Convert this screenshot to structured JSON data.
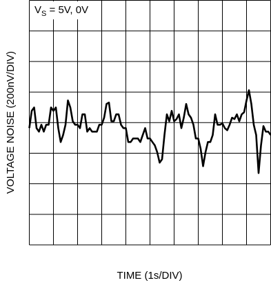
{
  "chart_data": {
    "type": "line",
    "xlabel": "TIME (1s/DIV)",
    "ylabel": "VOLTAGE NOISE (200nV/DIV)",
    "annotation": {
      "main": "V",
      "sub": "S",
      "rest": " = 5V, 0V"
    },
    "x": [
      0,
      0.1,
      0.2,
      0.3,
      0.4,
      0.5,
      0.6,
      0.7,
      0.8,
      0.9,
      1,
      1.1,
      1.2,
      1.3,
      1.4,
      1.5,
      1.6,
      1.7,
      1.8,
      1.9,
      2,
      2.1,
      2.2,
      2.3,
      2.4,
      2.5,
      2.6,
      2.7,
      2.8,
      2.9,
      3,
      3.1,
      3.2,
      3.3,
      3.4,
      3.5,
      3.6,
      3.7,
      3.8,
      3.9,
      4,
      4.1,
      4.2,
      4.3,
      4.4,
      4.5,
      4.6,
      4.7,
      4.8,
      4.9,
      5,
      5.1,
      5.2,
      5.3,
      5.4,
      5.5,
      5.6,
      5.7,
      5.8,
      5.9,
      6,
      6.1,
      6.2,
      6.3,
      6.4,
      6.5,
      6.6,
      6.7,
      6.8,
      6.9,
      7,
      7.1,
      7.2,
      7.3,
      7.4,
      7.5,
      7.6,
      7.7,
      7.8,
      7.9,
      8,
      8.1,
      8.2,
      8.3,
      8.4,
      8.5,
      8.6,
      8.7,
      8.8,
      8.9,
      9,
      9.1,
      9.2,
      9.3,
      9.4,
      9.5,
      9.6,
      9.7,
      9.8,
      9.9,
      10
    ],
    "series": [
      {
        "color": "#000000",
        "values": [
          -36,
          77,
          99,
          -36,
          -59,
          -14,
          -59,
          -14,
          -14,
          99,
          77,
          99,
          -36,
          -127,
          -81,
          -14,
          145,
          99,
          9,
          -14,
          -14,
          -36,
          54,
          54,
          -59,
          -36,
          -59,
          -59,
          -59,
          -14,
          -14,
          32,
          122,
          131,
          9,
          9,
          54,
          54,
          -14,
          -36,
          -36,
          -127,
          -127,
          -104,
          -104,
          -104,
          -127,
          -81,
          -36,
          -104,
          -104,
          -127,
          -149,
          -194,
          -262,
          -240,
          -81,
          54,
          9,
          77,
          9,
          23,
          54,
          -36,
          32,
          122,
          54,
          32,
          -14,
          -104,
          -104,
          -172,
          -285,
          -194,
          -127,
          -127,
          -81,
          54,
          -14,
          -14,
          -5,
          -36,
          -50,
          -14,
          32,
          23,
          54,
          9,
          54,
          68,
          145,
          212,
          122,
          -14,
          -81,
          -330,
          -149,
          -23,
          -59,
          -59,
          -81
        ]
      }
    ],
    "xlim": [
      0,
      10
    ],
    "ylim": [
      -800,
      800
    ],
    "xticks": [
      0,
      1,
      2,
      3,
      4,
      5,
      6,
      7,
      8,
      9,
      10
    ],
    "yticks": [
      -800,
      -600,
      -400,
      -200,
      0,
      200,
      400,
      600,
      800
    ],
    "grid": true
  }
}
